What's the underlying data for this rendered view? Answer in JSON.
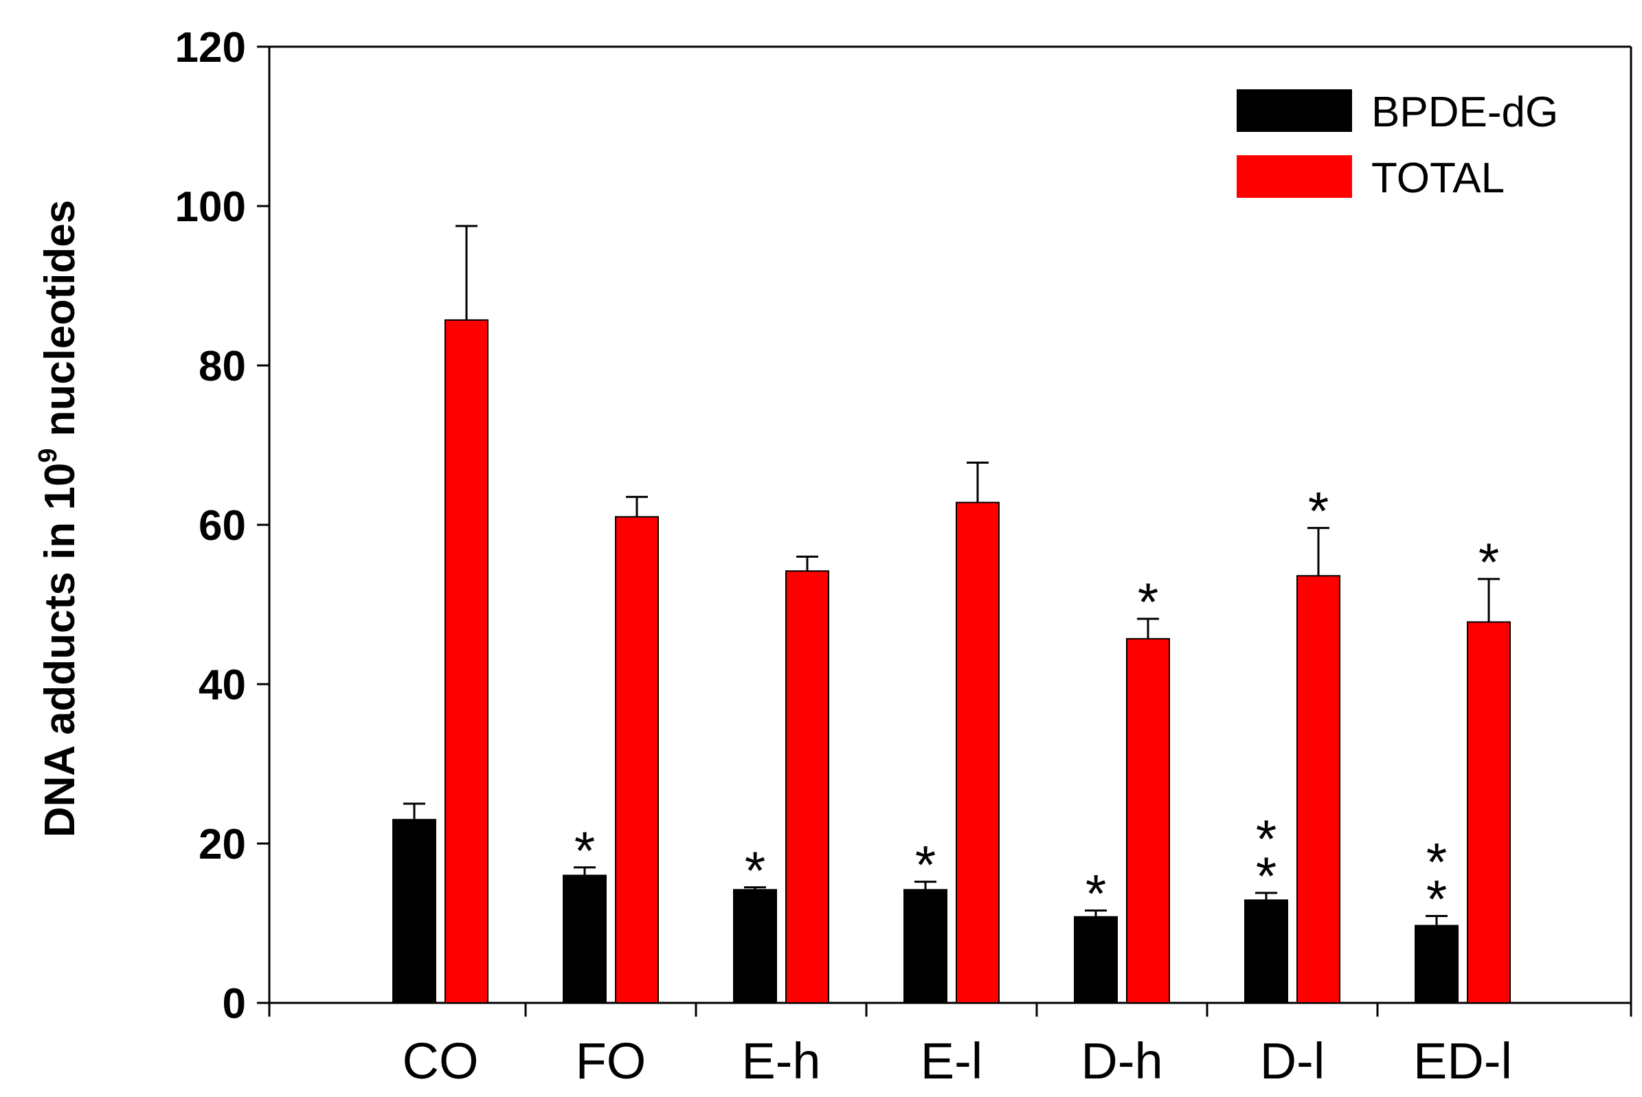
{
  "chart_data": {
    "type": "bar",
    "title": "",
    "xlabel": "",
    "ylabel_prefix": "DNA adducts in 10",
    "ylabel_sup": "9",
    "ylabel_suffix": " nucleotides",
    "ylim": [
      0,
      120
    ],
    "yticks": [
      "0",
      "20",
      "40",
      "60",
      "80",
      "100",
      "120"
    ],
    "categories": [
      "CO",
      "FO",
      "E-h",
      "E-l",
      "D-h",
      "D-l",
      "ED-l"
    ],
    "series": [
      {
        "name": "BPDE-dG",
        "color": "#000000",
        "values": [
          23,
          16,
          14.2,
          14.2,
          10.8,
          12.9,
          9.7
        ],
        "errors": [
          2,
          1,
          0.3,
          1,
          0.8,
          0.9,
          1.2
        ],
        "significance": [
          "",
          "*",
          "*",
          "*",
          "*",
          "**",
          "**"
        ]
      },
      {
        "name": "TOTAL",
        "color": "#ff0000",
        "values": [
          85.7,
          61,
          54.2,
          62.8,
          45.7,
          53.6,
          47.8
        ],
        "errors": [
          11.8,
          2.5,
          1.8,
          5,
          2.5,
          6,
          5.4
        ],
        "significance": [
          "",
          "",
          "",
          "",
          "*",
          "*",
          "*"
        ]
      }
    ],
    "legend_position": "top-right",
    "grid": false
  }
}
